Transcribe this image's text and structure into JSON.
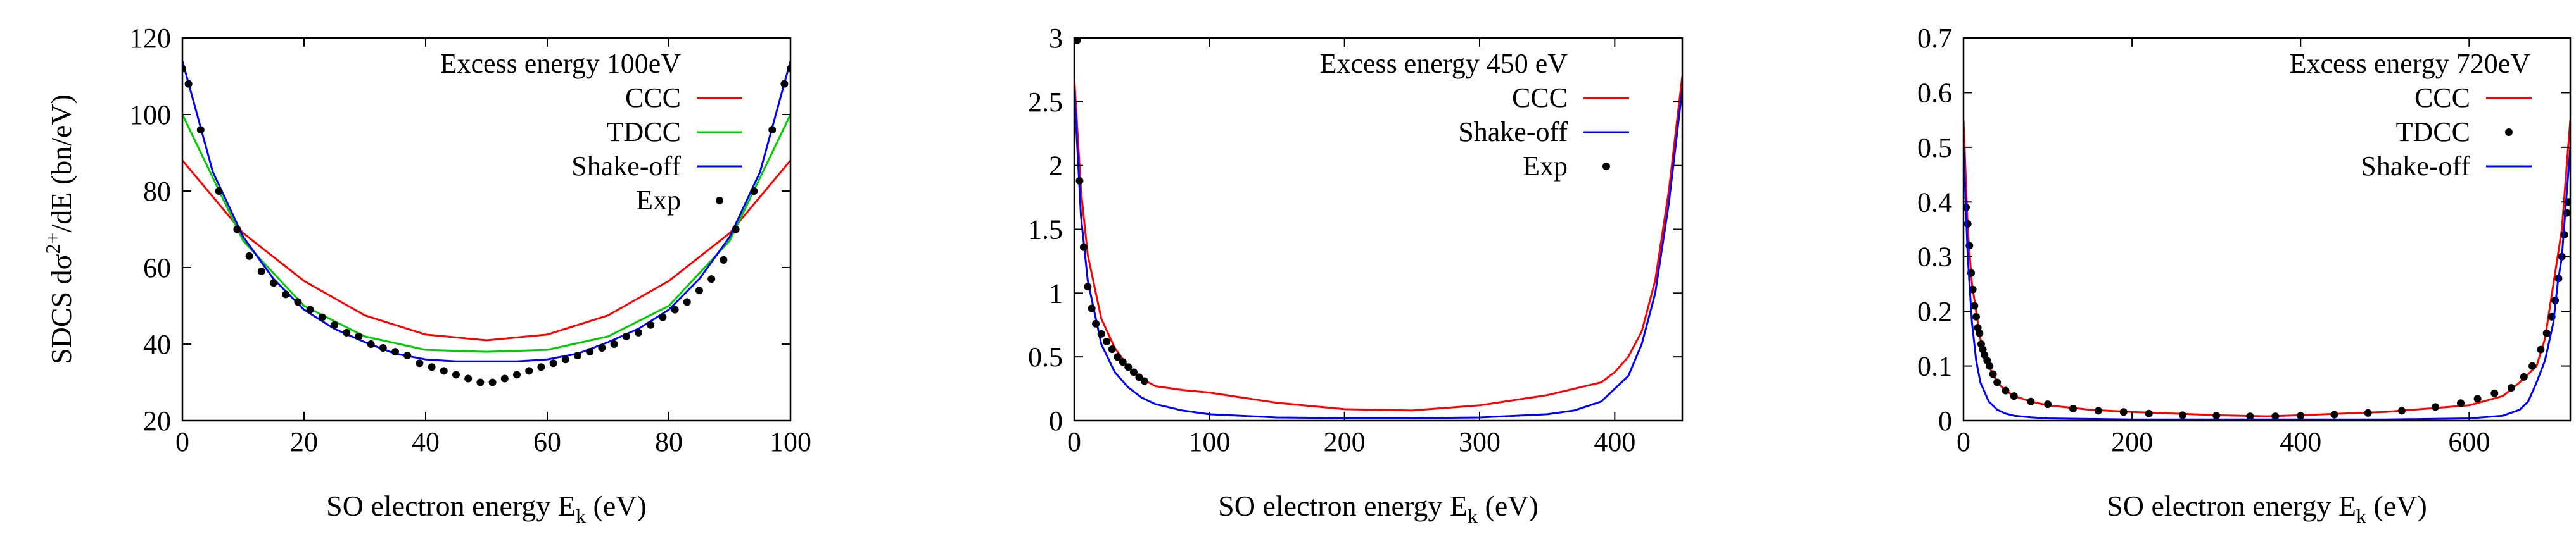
{
  "chart_data": [
    {
      "type": "line",
      "title": "",
      "xlabel": "SO electron energy E",
      "xlabel_sub": "k",
      "xlabel_unit": "(eV)",
      "ylabel": "SDCS dσ",
      "ylabel_sup": "2+",
      "ylabel_rest": "/dE (bn/eV)",
      "xlim": [
        0,
        100
      ],
      "ylim": [
        20,
        120
      ],
      "xticks": [
        0,
        20,
        40,
        60,
        80,
        100
      ],
      "yticks": [
        20,
        40,
        60,
        80,
        100,
        120
      ],
      "legend_title": "Excess energy 100eV",
      "series": [
        {
          "name": "CCC",
          "color": "#ff0000",
          "style": "line",
          "x": [
            0,
            10,
            20,
            30,
            40,
            50,
            60,
            70,
            80,
            90,
            100
          ],
          "y": [
            88,
            69,
            56.5,
            47.5,
            42.5,
            41,
            42.5,
            47.5,
            56.5,
            69,
            88
          ]
        },
        {
          "name": "TDCC",
          "color": "#00cc00",
          "style": "line",
          "x": [
            0,
            10,
            20,
            30,
            40,
            50,
            60,
            70,
            80,
            90,
            100
          ],
          "y": [
            100,
            67,
            50,
            42,
            38.5,
            38,
            38.5,
            42,
            50,
            67,
            100
          ]
        },
        {
          "name": "Shake-off",
          "color": "#0000ff",
          "style": "line",
          "x": [
            0,
            5,
            10,
            15,
            20,
            25,
            30,
            35,
            40,
            45,
            50,
            55,
            60,
            65,
            70,
            75,
            80,
            85,
            90,
            95,
            100
          ],
          "y": [
            114,
            85,
            68,
            57,
            49,
            44,
            40.5,
            37.5,
            36,
            35.5,
            35.5,
            35.5,
            36,
            37.5,
            40.5,
            44,
            49,
            57,
            68,
            85,
            114
          ]
        },
        {
          "name": "Exp",
          "color": "#000000",
          "style": "points",
          "x": [
            0,
            1,
            3,
            6,
            9,
            11,
            13,
            15,
            17,
            19,
            21,
            23,
            25,
            27,
            29,
            31,
            33,
            35,
            37,
            39,
            41,
            43,
            45,
            47,
            49,
            51,
            53,
            55,
            57,
            59,
            61,
            63,
            65,
            67,
            69,
            71,
            73,
            75,
            77,
            79,
            81,
            83,
            85,
            87,
            89,
            91,
            94,
            97,
            99,
            100
          ],
          "y": [
            112,
            108,
            96,
            80,
            70,
            63,
            59,
            56,
            53,
            51,
            49,
            47,
            45,
            43,
            42,
            40,
            39,
            38,
            37,
            35,
            34,
            33,
            32,
            31,
            30,
            30,
            31,
            32,
            33,
            34,
            35,
            36,
            37,
            38,
            39,
            40,
            42,
            43,
            45,
            47,
            49,
            51,
            54,
            57,
            62,
            70,
            80,
            96,
            108,
            112
          ]
        }
      ]
    },
    {
      "type": "line",
      "title": "",
      "xlabel": "SO electron energy E",
      "xlabel_sub": "k",
      "xlabel_unit": "(eV)",
      "ylabel": "",
      "xlim": [
        0,
        450
      ],
      "ylim": [
        0,
        3
      ],
      "xticks": [
        0,
        100,
        200,
        300,
        400
      ],
      "yticks": [
        0,
        0.5,
        1,
        1.5,
        2,
        2.5,
        3
      ],
      "legend_title": "Excess energy 450 eV",
      "series": [
        {
          "name": "CCC",
          "color": "#ff0000",
          "style": "line",
          "x": [
            0,
            5,
            10,
            20,
            30,
            40,
            50,
            60,
            80,
            100,
            150,
            200,
            250,
            300,
            350,
            370,
            390,
            400,
            410,
            420,
            430,
            440,
            450
          ],
          "y": [
            2.7,
            1.8,
            1.3,
            0.8,
            0.57,
            0.42,
            0.33,
            0.27,
            0.24,
            0.22,
            0.14,
            0.09,
            0.08,
            0.12,
            0.2,
            0.25,
            0.3,
            0.38,
            0.5,
            0.7,
            1.1,
            1.8,
            2.7
          ]
        },
        {
          "name": "Shake-off",
          "color": "#0000ff",
          "style": "line",
          "x": [
            0,
            5,
            10,
            20,
            30,
            40,
            50,
            60,
            80,
            100,
            150,
            200,
            250,
            300,
            350,
            370,
            390,
            410,
            420,
            430,
            440,
            450
          ],
          "y": [
            2.6,
            1.6,
            1.1,
            0.6,
            0.38,
            0.26,
            0.18,
            0.13,
            0.08,
            0.05,
            0.025,
            0.02,
            0.02,
            0.025,
            0.05,
            0.08,
            0.15,
            0.35,
            0.6,
            1.0,
            1.7,
            2.6
          ]
        },
        {
          "name": "Exp",
          "color": "#000000",
          "style": "points",
          "x": [
            2,
            4,
            7,
            10,
            13,
            16,
            20,
            24,
            28,
            32,
            36,
            40,
            44,
            48,
            52
          ],
          "y": [
            2.98,
            1.88,
            1.36,
            1.05,
            0.88,
            0.76,
            0.68,
            0.62,
            0.56,
            0.5,
            0.46,
            0.42,
            0.38,
            0.34,
            0.31
          ]
        }
      ]
    },
    {
      "type": "line",
      "title": "",
      "xlabel": "SO electron energy E",
      "xlabel_sub": "k",
      "xlabel_unit": "(eV)",
      "ylabel": "",
      "xlim": [
        0,
        720
      ],
      "ylim": [
        0,
        0.7
      ],
      "xticks": [
        0,
        200,
        400,
        600
      ],
      "yticks": [
        0,
        0.1,
        0.2,
        0.3,
        0.4,
        0.5,
        0.6,
        0.7
      ],
      "legend_title": "Excess energy 720eV",
      "series": [
        {
          "name": "CCC",
          "color": "#ff0000",
          "style": "line",
          "x": [
            0,
            5,
            10,
            20,
            30,
            40,
            50,
            60,
            80,
            100,
            150,
            200,
            300,
            360,
            400,
            500,
            600,
            640,
            660,
            680,
            690,
            700,
            710,
            715,
            720
          ],
          "y": [
            0.55,
            0.35,
            0.25,
            0.15,
            0.1,
            0.07,
            0.055,
            0.045,
            0.035,
            0.028,
            0.02,
            0.016,
            0.01,
            0.008,
            0.01,
            0.016,
            0.028,
            0.045,
            0.07,
            0.1,
            0.15,
            0.25,
            0.35,
            0.45,
            0.55
          ]
        },
        {
          "name": "TDCC",
          "color": "#000000",
          "style": "points",
          "x": [
            3,
            5,
            7,
            9,
            11,
            13,
            15,
            17,
            19,
            21,
            23,
            25,
            28,
            31,
            35,
            40,
            50,
            60,
            80,
            100,
            130,
            160,
            190,
            220,
            260,
            300,
            340,
            370,
            400,
            440,
            480,
            520,
            560,
            590,
            610,
            630,
            650,
            665,
            675,
            685,
            692,
            698,
            702,
            706,
            710,
            713,
            716,
            718
          ],
          "y": [
            0.39,
            0.36,
            0.32,
            0.27,
            0.24,
            0.21,
            0.19,
            0.17,
            0.16,
            0.14,
            0.13,
            0.12,
            0.11,
            0.1,
            0.085,
            0.07,
            0.055,
            0.045,
            0.035,
            0.03,
            0.022,
            0.018,
            0.016,
            0.013,
            0.01,
            0.009,
            0.008,
            0.008,
            0.009,
            0.011,
            0.014,
            0.018,
            0.025,
            0.032,
            0.04,
            0.05,
            0.06,
            0.08,
            0.1,
            0.13,
            0.16,
            0.19,
            0.22,
            0.26,
            0.3,
            0.34,
            0.38,
            0.4
          ]
        },
        {
          "name": "Shake-off",
          "color": "#0000ff",
          "style": "line",
          "x": [
            0,
            5,
            10,
            15,
            20,
            30,
            40,
            50,
            60,
            80,
            100,
            200,
            300,
            400,
            500,
            600,
            640,
            660,
            670,
            680,
            690,
            700,
            705,
            710,
            715,
            720
          ],
          "y": [
            0.5,
            0.3,
            0.18,
            0.11,
            0.07,
            0.035,
            0.02,
            0.013,
            0.009,
            0.006,
            0.004,
            0.002,
            0.002,
            0.002,
            0.002,
            0.004,
            0.009,
            0.02,
            0.035,
            0.07,
            0.11,
            0.18,
            0.25,
            0.3,
            0.4,
            0.5
          ]
        }
      ]
    }
  ]
}
